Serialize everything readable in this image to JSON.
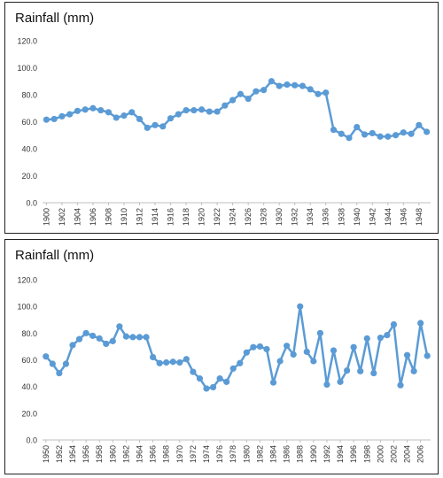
{
  "chart_data": [
    {
      "type": "line",
      "title": "Rainfall (mm)",
      "xlabel": "",
      "ylabel": "",
      "ylim": [
        0,
        120
      ],
      "yticks": [
        "0.0",
        "20.0",
        "40.0",
        "60.0",
        "80.0",
        "100.0",
        "120.0"
      ],
      "grid": false,
      "legend": "none",
      "colors": {
        "series": "#5b9bd5",
        "axis": "#bfbfbf",
        "text": "#333333"
      },
      "x": [
        1900,
        1901,
        1902,
        1903,
        1904,
        1905,
        1906,
        1907,
        1908,
        1909,
        1910,
        1911,
        1912,
        1913,
        1914,
        1915,
        1916,
        1917,
        1918,
        1919,
        1920,
        1921,
        1922,
        1923,
        1924,
        1925,
        1926,
        1927,
        1928,
        1929,
        1930,
        1931,
        1932,
        1933,
        1934,
        1935,
        1936,
        1937,
        1938,
        1939,
        1940,
        1941,
        1942,
        1943,
        1944,
        1945,
        1946,
        1947,
        1948,
        1949
      ],
      "xtick_labels": [
        "1900",
        "1902",
        "1904",
        "1906",
        "1908",
        "1910",
        "1912",
        "1914",
        "1916",
        "1918",
        "1920",
        "1922",
        "1924",
        "1926",
        "1928",
        "1930",
        "1932",
        "1934",
        "1936",
        "1938",
        "1940",
        "1942",
        "1944",
        "1946",
        "1948"
      ],
      "values": [
        61.5,
        62,
        64,
        65.5,
        68,
        69,
        70,
        68.5,
        67,
        63,
        64.5,
        67,
        62,
        55.5,
        57.5,
        56.5,
        62.5,
        65.5,
        68.5,
        68.5,
        69,
        67.5,
        67.5,
        72,
        76,
        80.5,
        77,
        82.5,
        83.5,
        90,
        86.5,
        87.5,
        87,
        86.5,
        84,
        80.5,
        81.5,
        54,
        51,
        48,
        56,
        50.5,
        51.5,
        49,
        49,
        50,
        52,
        51,
        57.5,
        52.5
      ]
    },
    {
      "type": "line",
      "title": "Rainfall (mm)",
      "xlabel": "",
      "ylabel": "",
      "ylim": [
        0,
        120
      ],
      "yticks": [
        "0.0",
        "20.0",
        "40.0",
        "60.0",
        "80.0",
        "100.0",
        "120.0"
      ],
      "grid": false,
      "legend": "none",
      "colors": {
        "series": "#5b9bd5",
        "axis": "#bfbfbf",
        "text": "#333333"
      },
      "x": [
        1950,
        1951,
        1952,
        1953,
        1954,
        1955,
        1956,
        1957,
        1958,
        1959,
        1960,
        1961,
        1962,
        1963,
        1964,
        1965,
        1966,
        1967,
        1968,
        1969,
        1970,
        1971,
        1972,
        1973,
        1974,
        1975,
        1976,
        1977,
        1978,
        1979,
        1980,
        1981,
        1982,
        1983,
        1984,
        1985,
        1986,
        1987,
        1988,
        1989,
        1990,
        1991,
        1992,
        1993,
        1994,
        1995,
        1996,
        1997,
        1998,
        1999,
        2000,
        2001,
        2002,
        2003,
        2004,
        2005,
        2006,
        2007
      ],
      "xtick_labels": [
        "1950",
        "1952",
        "1954",
        "1956",
        "1958",
        "1960",
        "1962",
        "1964",
        "1966",
        "1968",
        "1970",
        "1972",
        "1974",
        "1976",
        "1978",
        "1980",
        "1982",
        "1984",
        "1986",
        "1988",
        "1990",
        "1992",
        "1994",
        "1996",
        "1998",
        "2000",
        "2002",
        "2004",
        "2006"
      ],
      "values": [
        62.5,
        57,
        50,
        57,
        71,
        75.5,
        80,
        78,
        76,
        72,
        74,
        85,
        77.5,
        77,
        77,
        77,
        62,
        57.5,
        58,
        58.5,
        58,
        60.5,
        51,
        46,
        38.5,
        39.5,
        46,
        43.5,
        53.5,
        57.5,
        65.5,
        69.5,
        70,
        68,
        43,
        59,
        70.5,
        64,
        100,
        66,
        59,
        80,
        41.5,
        67,
        43.5,
        52,
        69.5,
        51.5,
        76,
        50,
        76.5,
        78.5,
        86.5,
        41,
        63.5,
        51.5,
        87.5,
        63
      ]
    }
  ]
}
